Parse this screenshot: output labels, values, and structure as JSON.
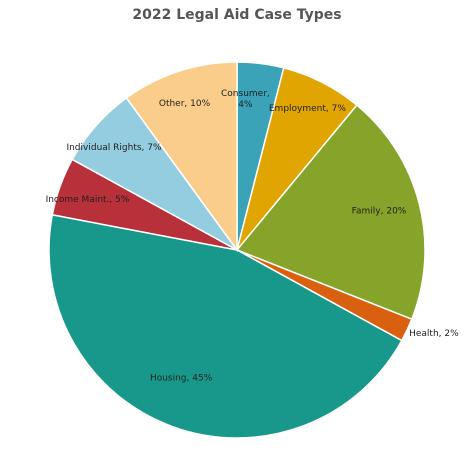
{
  "chart_data": {
    "type": "pie",
    "title": "2022 Legal Aid Case Types",
    "start_angle_deg": 0,
    "direction": "clockwise",
    "slices": [
      {
        "label": "Consumer, 4%",
        "lines": [
          "Consumer,",
          "4%"
        ],
        "value": 4,
        "color": "#3aa3b8"
      },
      {
        "label": "Employment, 7%",
        "lines": [
          "Employment, 7%"
        ],
        "value": 7,
        "color": "#e0a500"
      },
      {
        "label": "Family, 20%",
        "lines": [
          "Family, 20%"
        ],
        "value": 20,
        "color": "#86a32a"
      },
      {
        "label": "Health, 2%",
        "lines": [
          "Health, 2%"
        ],
        "value": 2,
        "color": "#d9600e"
      },
      {
        "label": "Housing, 45%",
        "lines": [
          "Housing, 45%"
        ],
        "value": 45,
        "color": "#18988a"
      },
      {
        "label": "Income Maint., 5%",
        "lines": [
          "Income Maint., 5%"
        ],
        "value": 5,
        "color": "#b7303a"
      },
      {
        "label": "Individual Rights, 7%",
        "lines": [
          "Individual Rights, 7%"
        ],
        "value": 7,
        "color": "#94cde0"
      },
      {
        "label": "Other, 10%",
        "lines": [
          "Other, 10%"
        ],
        "value": 10,
        "color": "#fbcd8a"
      }
    ]
  }
}
